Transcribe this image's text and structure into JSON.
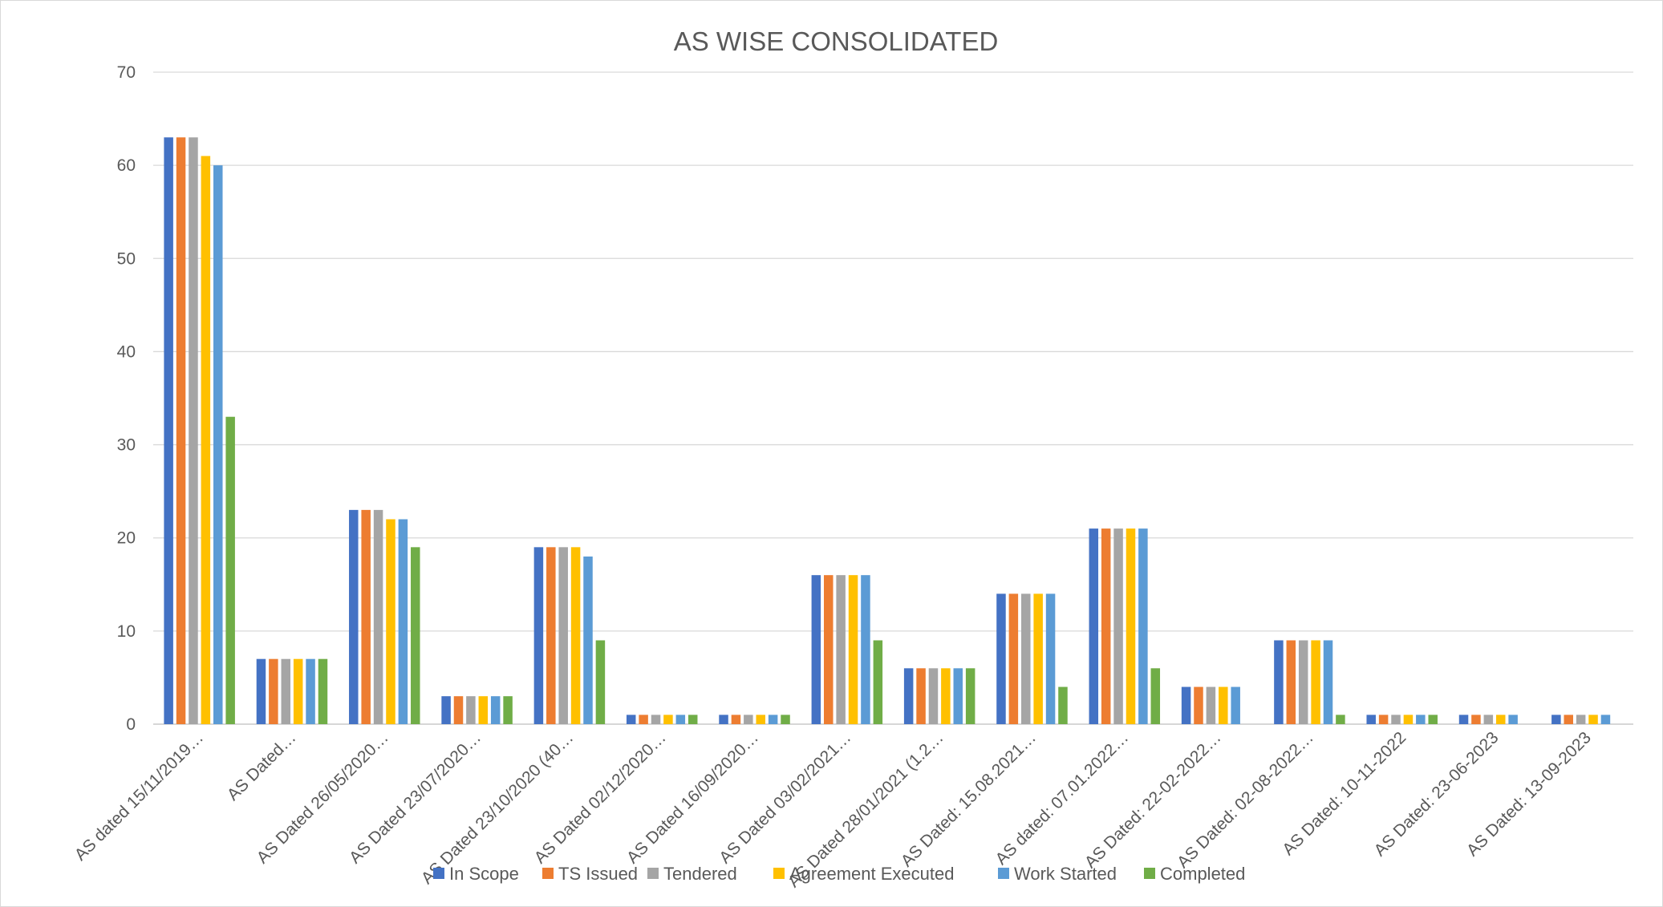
{
  "chart_data": {
    "type": "bar",
    "title": "AS WISE CONSOLIDATED",
    "xlabel": "",
    "ylabel": "",
    "ylim": [
      0,
      70
    ],
    "yticks": [
      0,
      10,
      20,
      30,
      40,
      50,
      60,
      70
    ],
    "grid": true,
    "legend_position": "bottom",
    "categories": [
      "AS dated 15/11/2019…",
      "AS Dated…",
      "AS Dated 26/05/2020…",
      "AS Dated 23/07/2020…",
      "AS Dated 23/10/2020 (40…",
      "AS Dated 02/12/2020…",
      "AS Dated 16/09/2020…",
      "AS Dated 03/02/2021…",
      "AS Dated 28/01/2021 (1.2…",
      "AS Dated: 15.08.2021…",
      "AS dated: 07.01.2022…",
      "AS Dated: 22-02-2022…",
      "AS Dated: 02-08-2022…",
      "AS Dated: 10-11-2022",
      "AS Dated: 23-06-2023",
      "AS Dated: 13-09-2023"
    ],
    "series": [
      {
        "name": "In Scope",
        "color": "#4472C4",
        "values": [
          63,
          7,
          23,
          3,
          19,
          1,
          1,
          16,
          6,
          14,
          21,
          4,
          9,
          1,
          1,
          1
        ]
      },
      {
        "name": "TS Issued",
        "color": "#ED7D31",
        "values": [
          63,
          7,
          23,
          3,
          19,
          1,
          1,
          16,
          6,
          14,
          21,
          4,
          9,
          1,
          1,
          1
        ]
      },
      {
        "name": "Tendered",
        "color": "#A5A5A5",
        "values": [
          63,
          7,
          23,
          3,
          19,
          1,
          1,
          16,
          6,
          14,
          21,
          4,
          9,
          1,
          1,
          1
        ]
      },
      {
        "name": "Agreement Executed",
        "color": "#FFC000",
        "values": [
          61,
          7,
          22,
          3,
          19,
          1,
          1,
          16,
          6,
          14,
          21,
          4,
          9,
          1,
          1,
          1
        ]
      },
      {
        "name": "Work Started",
        "color": "#5B9BD5",
        "values": [
          60,
          7,
          22,
          3,
          18,
          1,
          1,
          16,
          6,
          14,
          21,
          4,
          9,
          1,
          1,
          1
        ]
      },
      {
        "name": "Completed",
        "color": "#70AD47",
        "values": [
          33,
          7,
          19,
          3,
          9,
          1,
          1,
          9,
          6,
          4,
          6,
          0,
          1,
          1,
          0,
          0
        ]
      }
    ]
  }
}
